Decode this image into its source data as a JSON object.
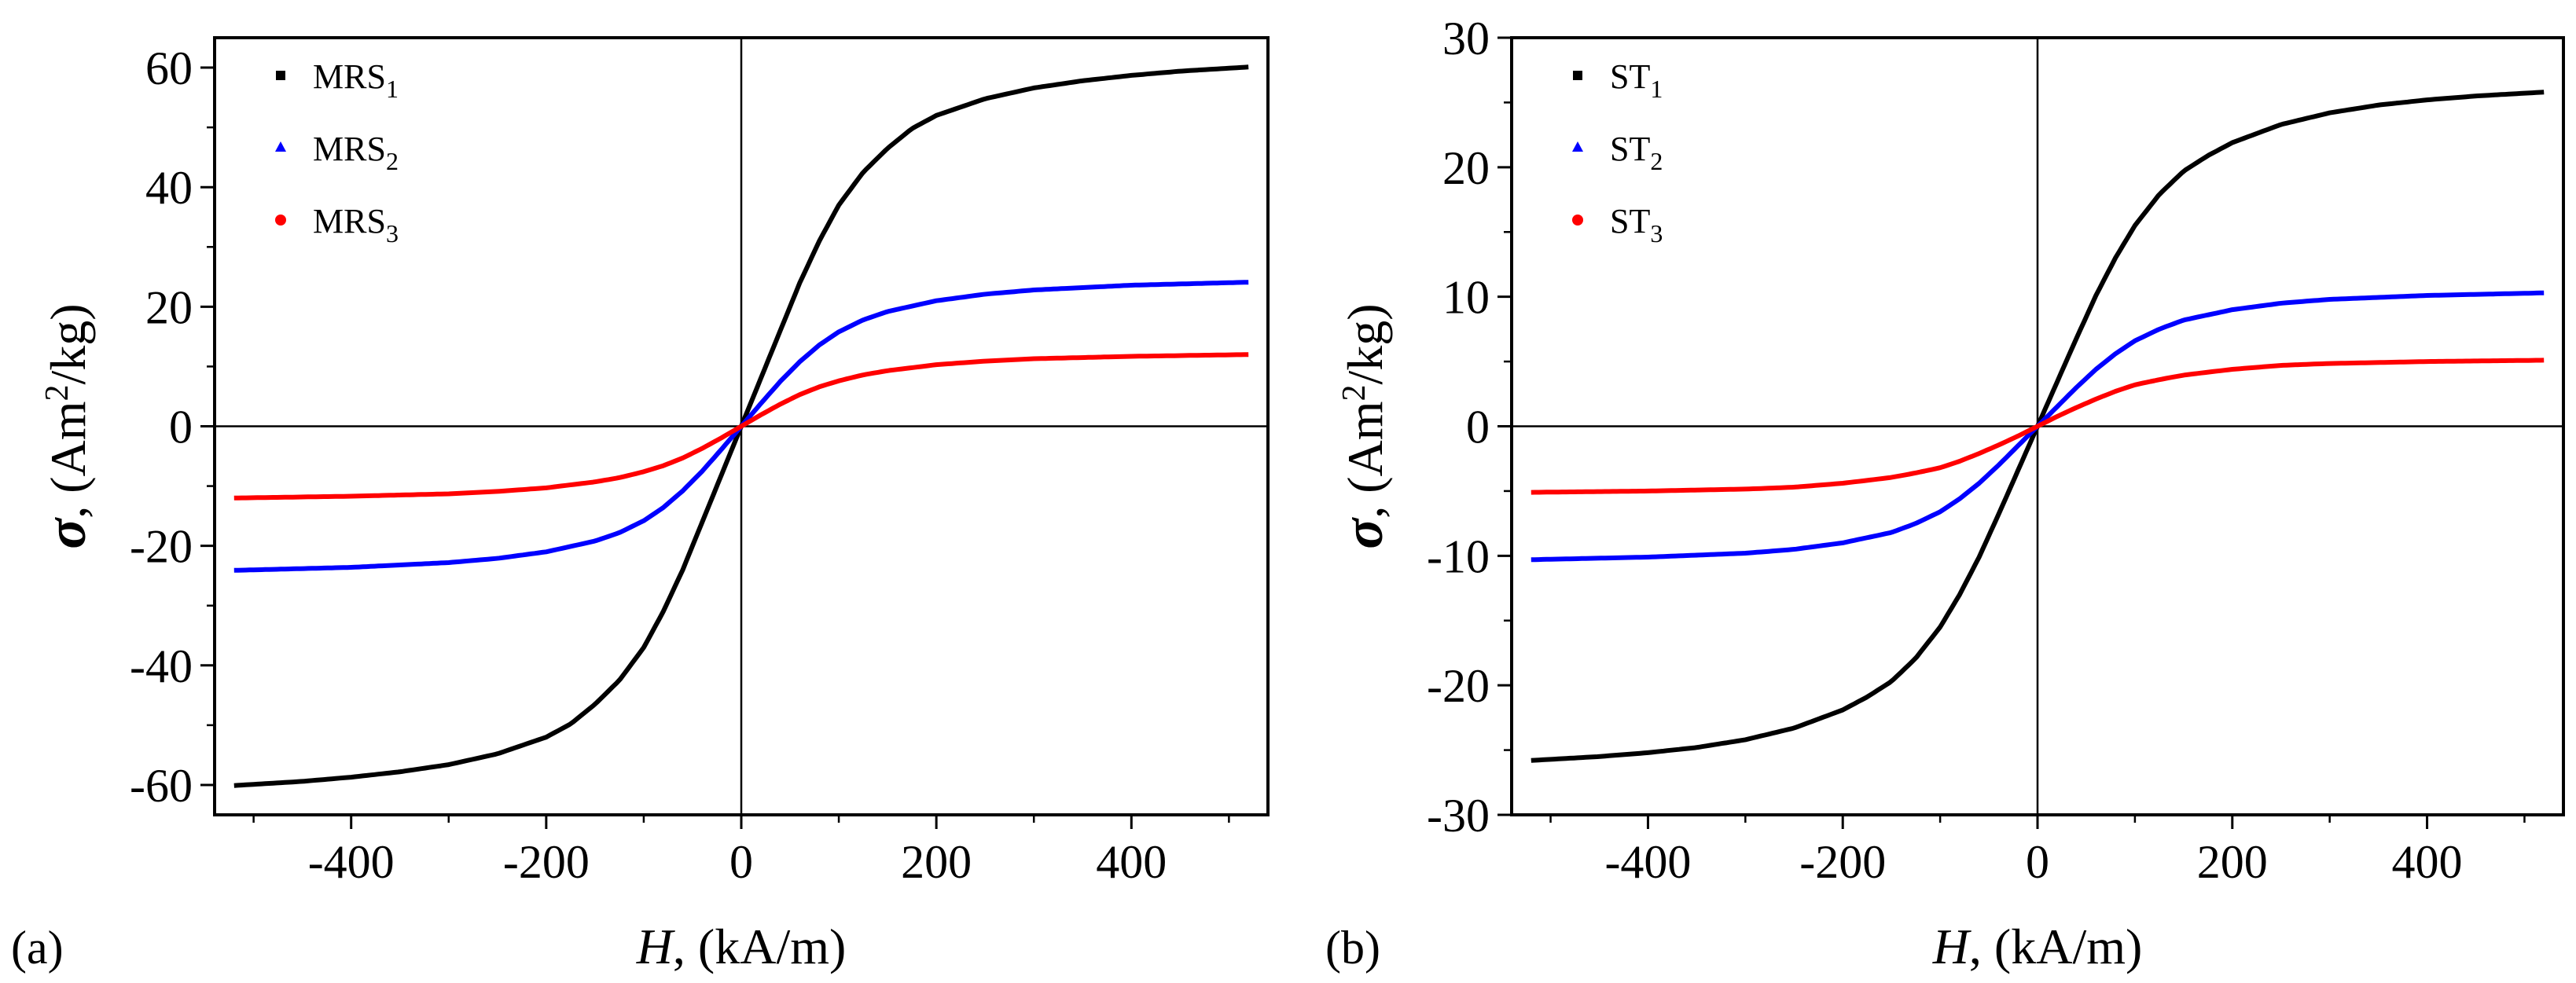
{
  "chart_data": [
    {
      "type": "line",
      "panel_label": "(a)",
      "xlabel_var": "H",
      "xlabel_unit": ", (kA/m)",
      "ylabel_var": "σ",
      "ylabel_unit_pre": ", (Am",
      "ylabel_unit_sup": "2",
      "ylabel_unit_post": "/kg)",
      "xlim": [
        -540,
        540
      ],
      "ylim": [
        -65,
        65
      ],
      "xticks": [
        -400,
        -200,
        0,
        200,
        400
      ],
      "xtick_labels": [
        "-400",
        "-200",
        "0",
        "200",
        "400"
      ],
      "yticks": [
        -60,
        -40,
        -20,
        0,
        20,
        40,
        60
      ],
      "ytick_labels": [
        "-60",
        "-40",
        "-20",
        "0",
        "20",
        "40",
        "60"
      ],
      "legend_position": "top-left",
      "grid": false,
      "series": [
        {
          "name": "MRS1",
          "label_base": "MRS",
          "label_sub": "1",
          "marker": "square",
          "color": "#000000",
          "x": [
            0,
            20,
            40,
            60,
            80,
            100,
            125,
            150,
            175,
            200,
            250,
            300,
            350,
            400,
            450,
            520
          ],
          "y": [
            0,
            8,
            16,
            24,
            31,
            37,
            42.5,
            46.5,
            49.8,
            52,
            54.8,
            56.6,
            57.8,
            58.7,
            59.4,
            60.1
          ]
        },
        {
          "name": "MRS2",
          "label_base": "MRS",
          "label_sub": "2",
          "marker": "triangle",
          "color": "#0000ff",
          "x": [
            0,
            20,
            40,
            60,
            80,
            100,
            125,
            150,
            200,
            250,
            300,
            400,
            520
          ],
          "y": [
            0,
            3.8,
            7.5,
            10.8,
            13.6,
            15.8,
            17.8,
            19.2,
            21,
            22.1,
            22.8,
            23.6,
            24.1
          ]
        },
        {
          "name": "MRS3",
          "label_base": "MRS",
          "label_sub": "3",
          "marker": "circle",
          "color": "#ff0000",
          "x": [
            0,
            20,
            40,
            60,
            80,
            100,
            125,
            150,
            200,
            250,
            300,
            400,
            520
          ],
          "y": [
            0,
            1.9,
            3.7,
            5.3,
            6.6,
            7.6,
            8.6,
            9.3,
            10.3,
            10.9,
            11.3,
            11.7,
            12
          ]
        }
      ]
    },
    {
      "type": "line",
      "panel_label": "(b)",
      "xlabel_var": "H",
      "xlabel_unit": ", (kA/m)",
      "ylabel_var": "σ",
      "ylabel_unit_pre": ", (Am",
      "ylabel_unit_sup": "2",
      "ylabel_unit_post": "/kg)",
      "xlim": [
        -540,
        540
      ],
      "ylim": [
        -30,
        30
      ],
      "xticks": [
        -400,
        -200,
        0,
        200,
        400
      ],
      "xtick_labels": [
        "-400",
        "-200",
        "0",
        "200",
        "400"
      ],
      "yticks": [
        -30,
        -20,
        -10,
        0,
        10,
        20,
        30
      ],
      "ytick_labels": [
        "-30",
        "-20",
        "-10",
        "0",
        "10",
        "20",
        "30"
      ],
      "legend_position": "top-left",
      "grid": false,
      "series": [
        {
          "name": "ST1",
          "label_base": "ST",
          "label_sub": "1",
          "marker": "square",
          "color": "#000000",
          "x": [
            0,
            20,
            40,
            60,
            80,
            100,
            125,
            150,
            175,
            200,
            250,
            300,
            350,
            400,
            450,
            520
          ],
          "y": [
            0,
            3.4,
            6.8,
            10.1,
            13,
            15.5,
            17.9,
            19.7,
            20.9,
            21.9,
            23.3,
            24.2,
            24.8,
            25.2,
            25.5,
            25.8
          ]
        },
        {
          "name": "ST2",
          "label_base": "ST",
          "label_sub": "2",
          "marker": "triangle",
          "color": "#0000ff",
          "x": [
            0,
            20,
            40,
            60,
            80,
            100,
            125,
            150,
            200,
            250,
            300,
            400,
            520
          ],
          "y": [
            0,
            1.5,
            3,
            4.4,
            5.6,
            6.6,
            7.5,
            8.2,
            9,
            9.5,
            9.8,
            10.1,
            10.3
          ]
        },
        {
          "name": "ST3",
          "label_base": "ST",
          "label_sub": "3",
          "marker": "circle",
          "color": "#ff0000",
          "x": [
            0,
            20,
            40,
            60,
            80,
            100,
            125,
            150,
            200,
            250,
            300,
            400,
            520
          ],
          "y": [
            0,
            0.75,
            1.45,
            2.1,
            2.7,
            3.2,
            3.6,
            3.95,
            4.4,
            4.7,
            4.85,
            5.0,
            5.1
          ]
        }
      ]
    }
  ]
}
